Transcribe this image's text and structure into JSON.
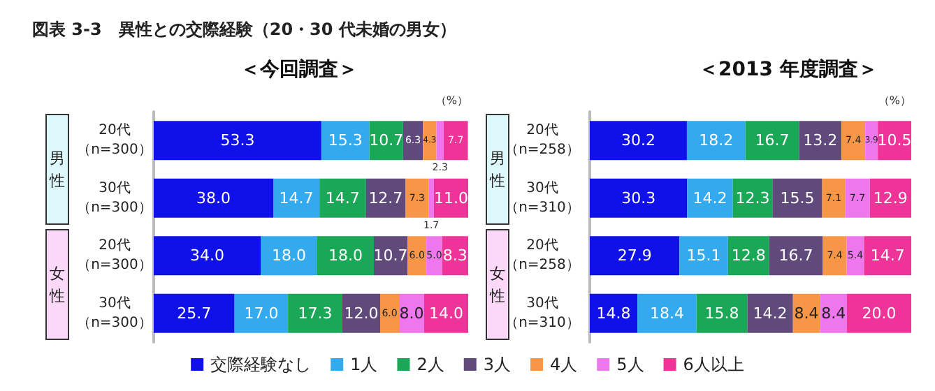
{
  "chart_data": [
    {
      "type": "bar",
      "orientation": "horizontal",
      "stacked": true,
      "title": "図表 3-3　異性との交際経験（20・30 代未婚の男女）",
      "subtitle": "＜今回調査＞",
      "categories": [
        "20代（n=300）",
        "30代（n=300）",
        "20代（n=300）",
        "30代（n=300）"
      ],
      "series": [
        {
          "name": "交際経験なし",
          "color": "#1010e8",
          "values": [
            53.3,
            38.0,
            34.0,
            25.7
          ],
          "value_labels": [
            "53.3",
            "38.0",
            "34.0",
            "25.7"
          ]
        },
        {
          "name": "1人",
          "color": "#33aaee",
          "values": [
            15.3,
            14.7,
            18.0,
            17.0
          ],
          "value_labels": [
            "15.3",
            "14.7",
            "18.0",
            "17.0"
          ]
        },
        {
          "name": "2人",
          "color": "#1aa857",
          "values": [
            10.7,
            14.7,
            18.0,
            17.3
          ],
          "value_labels": [
            "10.7",
            "14.7",
            "18.0",
            "17.3"
          ]
        },
        {
          "name": "3人",
          "color": "#604a7b",
          "values": [
            6.3,
            12.7,
            10.7,
            12.0
          ],
          "value_labels": [
            "6.3",
            "12.7",
            "10.7",
            "12.0"
          ]
        },
        {
          "name": "4人",
          "color": "#f79646",
          "values": [
            4.3,
            7.3,
            6.0,
            6.0
          ],
          "value_labels": [
            "4.3",
            "7.3",
            "6.0",
            "6.0"
          ]
        },
        {
          "name": "5人",
          "color": "#ee77ee",
          "values": [
            2.3,
            1.7,
            5.0,
            8.0
          ],
          "value_labels": [
            "2.3",
            "1.7",
            "5.0",
            "8.0"
          ]
        },
        {
          "name": "6人以上",
          "color": "#ee3399",
          "values": [
            7.7,
            11.0,
            8.3,
            14.0
          ],
          "value_labels": [
            "7.7",
            "11.0",
            "8.3",
            "14.0"
          ]
        }
      ],
      "xlim": [
        0,
        100
      ],
      "tick_labels": "y",
      "legend": "bottom",
      "annotations": [
        "男性",
        "女性",
        "（%）"
      ]
    },
    {
      "type": "bar",
      "orientation": "horizontal",
      "stacked": true,
      "subtitle": "＜2013 年度調査＞",
      "categories": [
        "20代（n=258）",
        "30代（n=310）",
        "20代（n=258）",
        "30代（n=310）"
      ],
      "series": [
        {
          "color": "#1010e8",
          "values": [
            30.2,
            30.3,
            27.9,
            14.8
          ],
          "value_labels": [
            "30.2",
            "30.3",
            "27.9",
            "14.8"
          ]
        },
        {
          "color": "#33aaee",
          "values": [
            18.2,
            14.2,
            15.1,
            18.4
          ],
          "value_labels": [
            "18.2",
            "14.2",
            "15.1",
            "18.4"
          ]
        },
        {
          "color": "#1aa857",
          "values": [
            16.7,
            12.3,
            12.8,
            15.8
          ],
          "value_labels": [
            "16.7",
            "12.3",
            "12.8",
            "15.8"
          ]
        },
        {
          "color": "#604a7b",
          "values": [
            13.2,
            15.5,
            16.7,
            14.2
          ],
          "value_labels": [
            "13.2",
            "15.5",
            "16.7",
            "14.2"
          ]
        },
        {
          "color": "#f79646",
          "values": [
            7.4,
            7.1,
            7.4,
            8.4
          ],
          "value_labels": [
            "7.4",
            "7.1",
            "7.4",
            "8.4"
          ]
        },
        {
          "color": "#ee77ee",
          "values": [
            3.9,
            7.7,
            5.4,
            8.4
          ],
          "value_labels": [
            "3.9",
            "7.7",
            "5.4",
            "8.4"
          ]
        },
        {
          "color": "#ee3399",
          "values": [
            10.5,
            12.9,
            14.7,
            20.0
          ],
          "value_labels": [
            "10.5",
            "12.9",
            "14.7",
            "20.0"
          ]
        }
      ],
      "xlim": [
        0,
        100
      ],
      "tick_labels": "y",
      "legend": false,
      "annotations": [
        "男性",
        "女性",
        "（%）"
      ]
    }
  ]
}
